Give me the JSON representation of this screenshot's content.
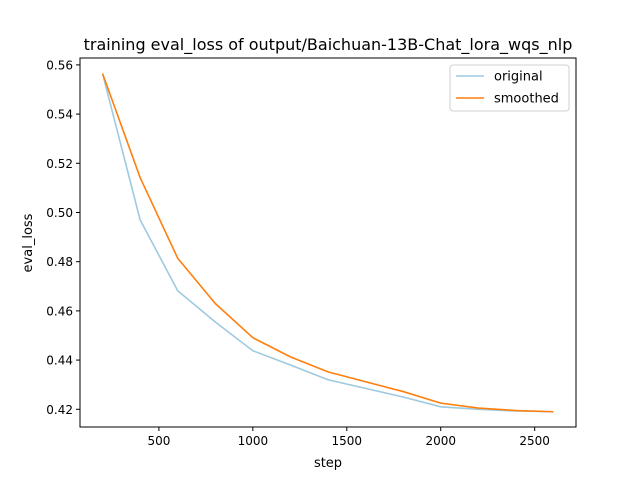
{
  "chart_data": {
    "type": "line",
    "title": "training eval_loss of output/Baichuan-13B-Chat_lora_wqs_nlp",
    "xlabel": "step",
    "ylabel": "eval_loss",
    "xlim": [
      80,
      2720
    ],
    "ylim": [
      0.4128,
      0.5628
    ],
    "xticks": [
      500,
      1000,
      1500,
      2000,
      2500
    ],
    "xtick_labels": [
      "500",
      "1000",
      "1500",
      "2000",
      "2500"
    ],
    "yticks": [
      0.42,
      0.44,
      0.46,
      0.48,
      0.5,
      0.52,
      0.54,
      0.56
    ],
    "ytick_labels": [
      "0.42",
      "0.44",
      "0.46",
      "0.48",
      "0.50",
      "0.52",
      "0.54",
      "0.56"
    ],
    "grid": false,
    "legend_position": "top-right",
    "x": [
      200,
      400,
      600,
      800,
      1000,
      1200,
      1400,
      1600,
      1800,
      2000,
      2200,
      2400,
      2600
    ],
    "series": [
      {
        "name": "original",
        "color": "#9ecae1",
        "values": [
          0.5565,
          0.497,
          0.4682,
          0.4555,
          0.4438,
          0.438,
          0.432,
          0.4285,
          0.425,
          0.421,
          0.42,
          0.4193,
          0.419
        ]
      },
      {
        "name": "smoothed",
        "color": "#ff7f0e",
        "values": [
          0.5565,
          0.5142,
          0.4814,
          0.463,
          0.4491,
          0.4413,
          0.4352,
          0.4312,
          0.4272,
          0.4225,
          0.4205,
          0.4195,
          0.419
        ]
      }
    ]
  }
}
